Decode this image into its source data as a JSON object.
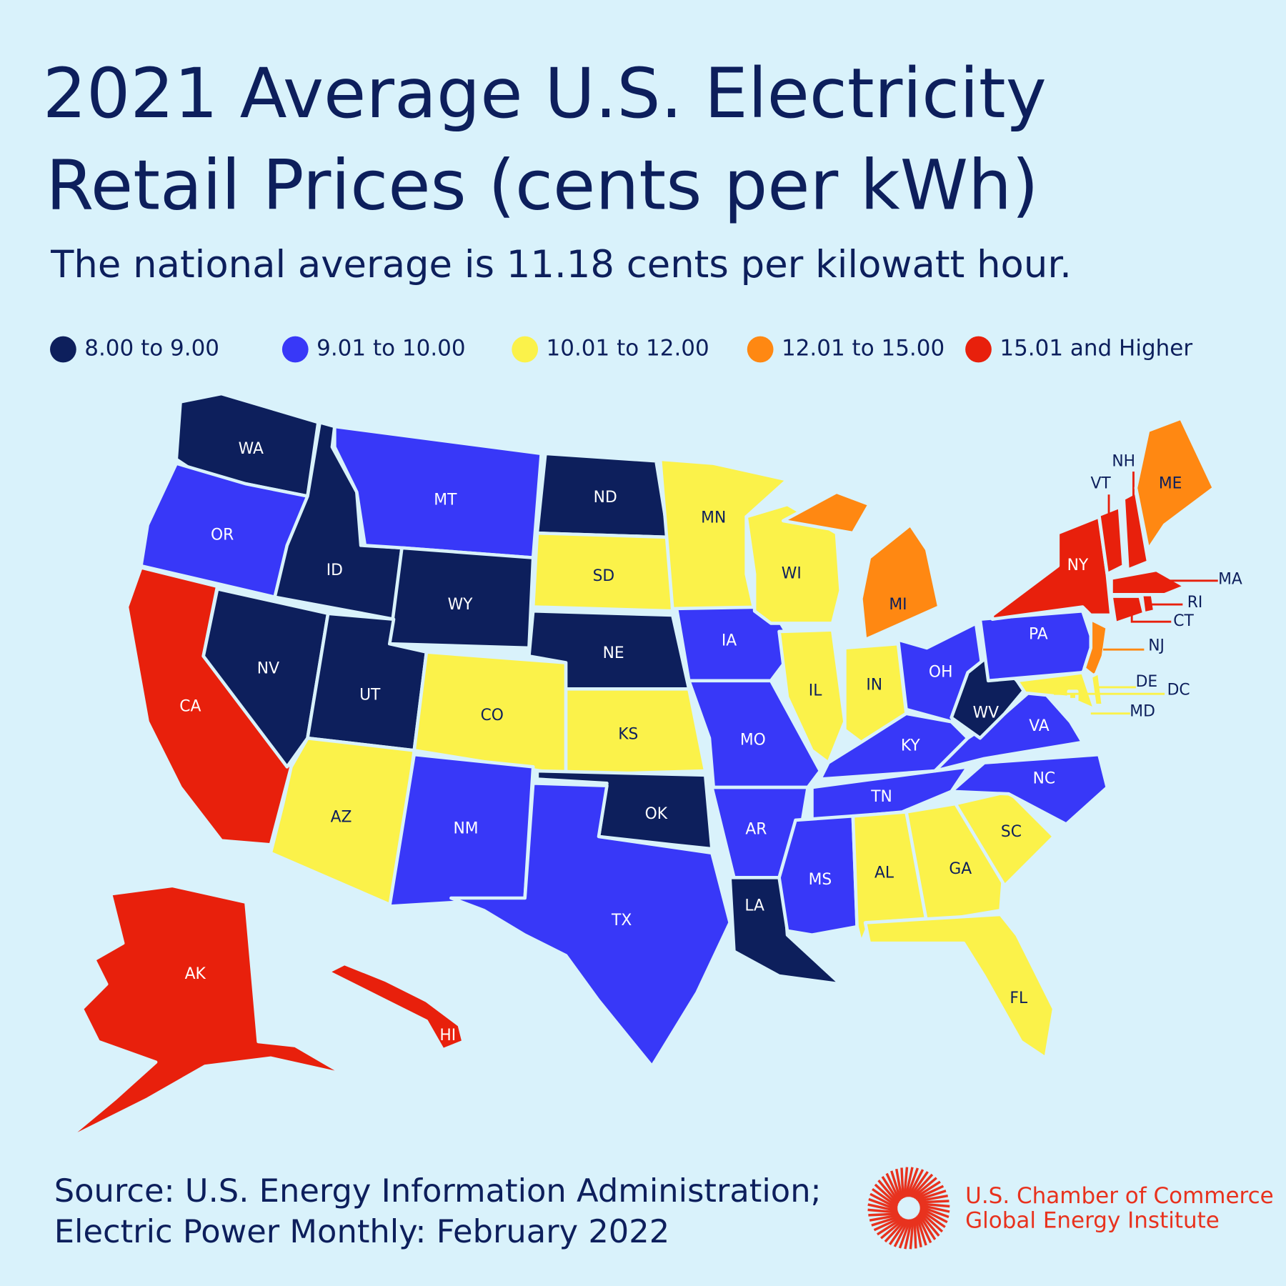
{
  "title_lines": [
    "2021 Average U.S. Electricity",
    "Retail Prices (cents per kWh)"
  ],
  "subtitle": "The national average is 11.18 cents per kilowatt hour.",
  "legend": [
    {
      "label": "8.00 to 9.00",
      "color": "#0d1f5c",
      "states": [
        "WA",
        "ID",
        "WY",
        "ND",
        "NE",
        "NV",
        "UT",
        "OK",
        "LA",
        "WV"
      ]
    },
    {
      "label": "9.01 to 10.00",
      "color": "#3838f8",
      "states": [
        "OR",
        "MT",
        "IA",
        "MO",
        "AR",
        "MS",
        "TN",
        "KY",
        "OH",
        "PA",
        "VA",
        "NC",
        "NM",
        "TX"
      ]
    },
    {
      "label": "10.01 to 12.00",
      "color": "#fbf24a",
      "states": [
        "MN",
        "SD",
        "WI",
        "IL",
        "IN",
        "CO",
        "KS",
        "AZ",
        "AL",
        "GA",
        "SC",
        "FL",
        "DE",
        "DC",
        "MD"
      ]
    },
    {
      "label": "12.01 to 15.00",
      "color": "#ff8812",
      "states": [
        "MI",
        "ME",
        "NJ"
      ]
    },
    {
      "label": "15.01 and Higher",
      "color": "#e8200c",
      "states": [
        "CA",
        "AK",
        "HI",
        "NY",
        "VT",
        "NH",
        "MA",
        "RI",
        "CT"
      ]
    }
  ],
  "source_lines": [
    "Source: U.S. Energy Information Administration;",
    "Electric Power Monthly: February 2022"
  ],
  "logo_lines": [
    "U.S. Chamber of Commerce",
    "Global Energy Institute"
  ]
}
